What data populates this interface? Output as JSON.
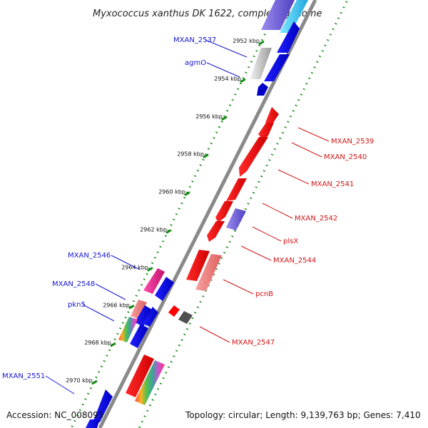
{
  "title": "Myxococcus xanthus DK 1622, complete genome",
  "footer": {
    "accession": "Accession: NC_008095",
    "topology": "Topology: circular; Length: 9,139,763 bp; Genes: 7,410"
  },
  "colors": {
    "left_label": "#1515d0",
    "right_label": "#d01515",
    "ruler_dots": "#138a13",
    "backbone": "#8a8a8a"
  },
  "ruler": {
    "unit": "kbp",
    "ticks": [
      "2952 kbp",
      "2954 kbp",
      "2956 kbp",
      "2958 kbp",
      "2960 kbp",
      "2962 kbp",
      "2964 kbp",
      "2966 kbp",
      "2968 kbp",
      "2970 kbp"
    ]
  },
  "genes_left": [
    "MXAN_2537",
    "agmO",
    "MXAN_2546",
    "MXAN_2548",
    "pkn5",
    "MXAN_2551"
  ],
  "genes_right": [
    "MXAN_2539",
    "MXAN_2540",
    "MXAN_2541",
    "MXAN_2542",
    "plsX",
    "MXAN_2544",
    "pcnB",
    "MXAN_2547"
  ]
}
